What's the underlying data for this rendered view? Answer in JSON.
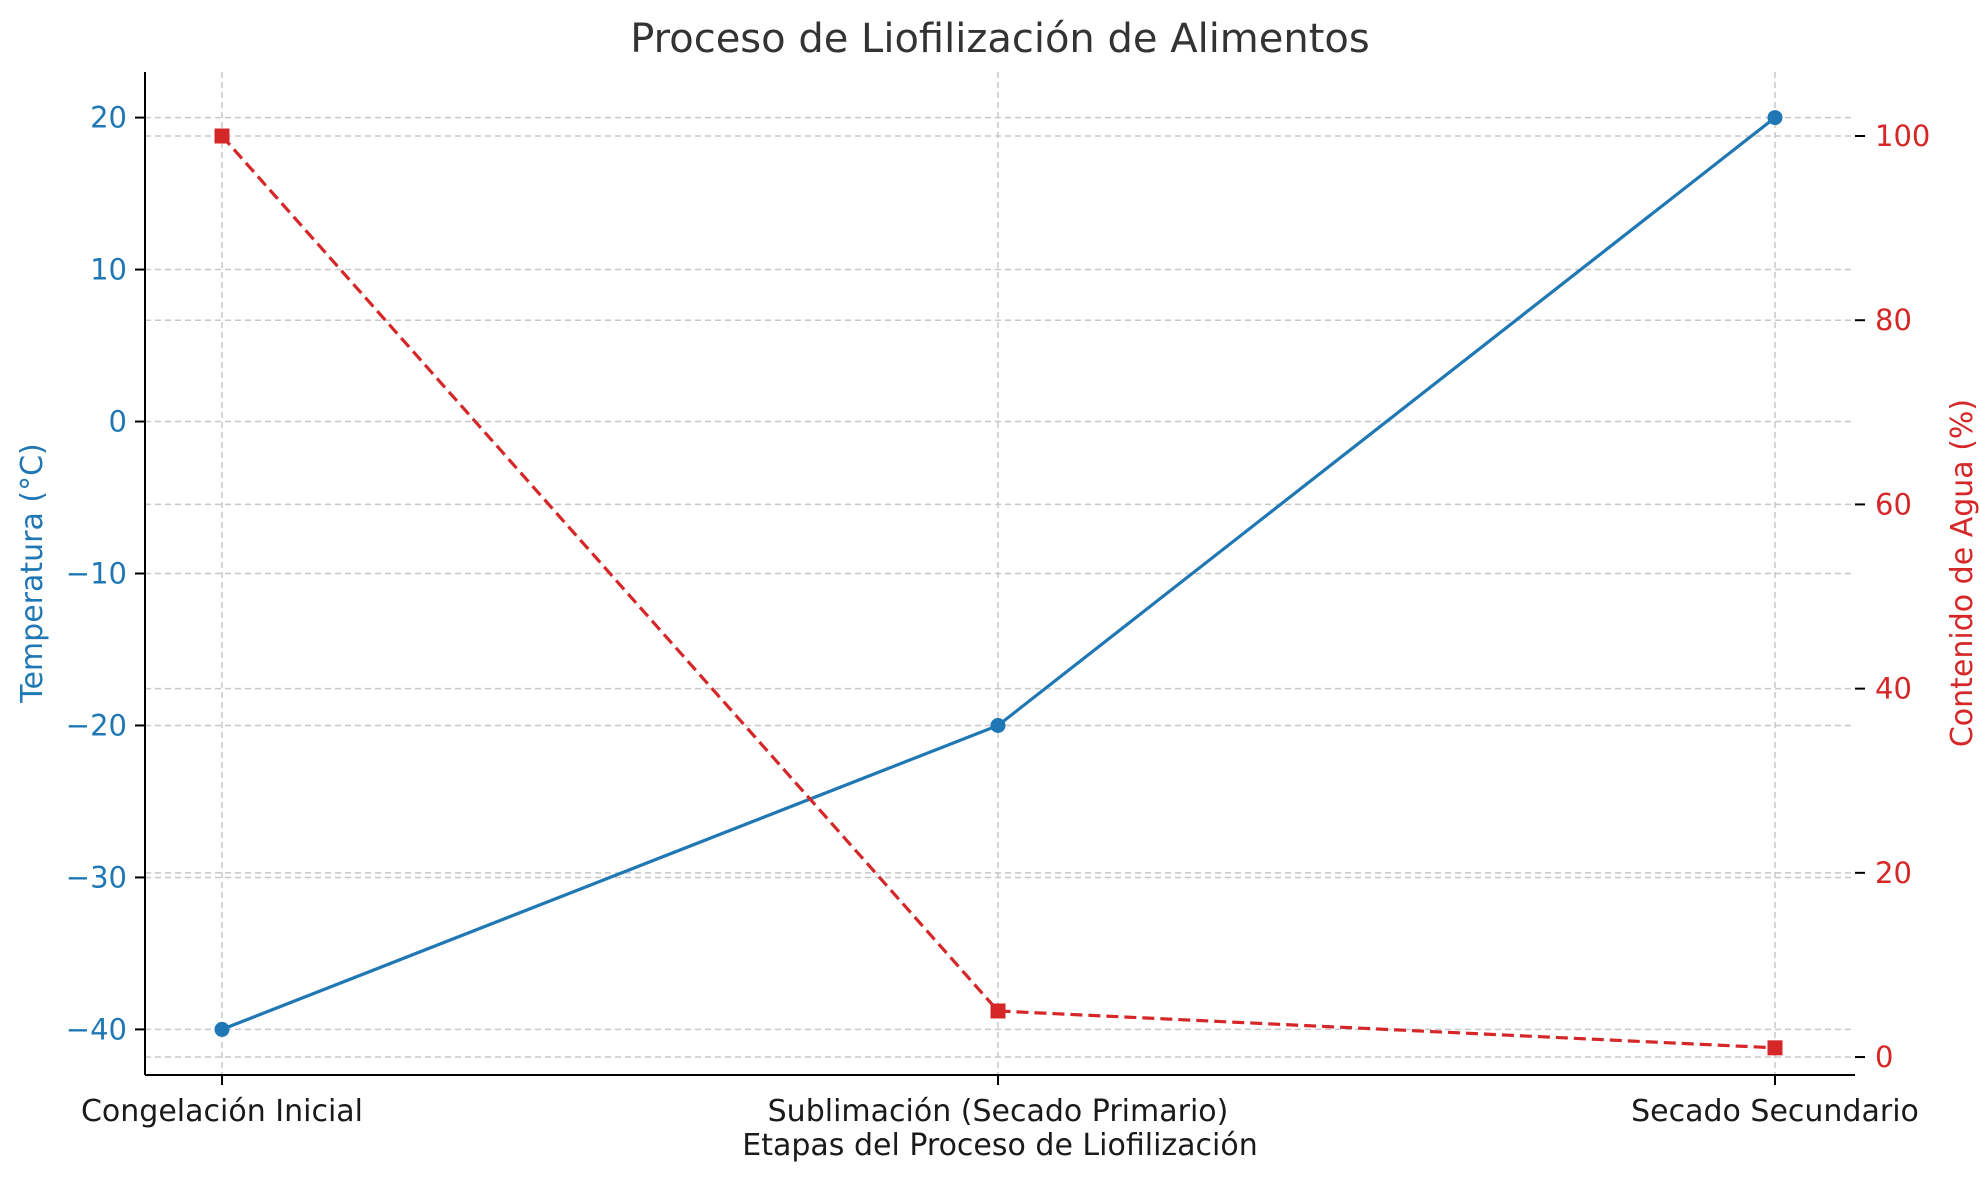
{
  "chart_data": {
    "type": "line",
    "title": "Proceso de Liofilización de Alimentos",
    "xlabel": "Etapas del Proceso de Liofilización",
    "ylabel_left": "Temperatura (°C)",
    "ylabel_right": "Contenido de Agua (%)",
    "categories": [
      "Congelación Inicial",
      "Sublimación (Secado Primario)",
      "Secado Secundario"
    ],
    "left_axis": {
      "ylim": [
        -43,
        23
      ],
      "ticks": [
        -40,
        -30,
        -20,
        -10,
        0,
        10,
        20
      ],
      "tick_labels": [
        "−40",
        "−30",
        "−20",
        "−10",
        "0",
        "10",
        "20"
      ],
      "color": "#1f77b4"
    },
    "right_axis": {
      "ylim": [
        -1.95,
        106.95
      ],
      "ticks": [
        0,
        20,
        40,
        60,
        80,
        100
      ],
      "tick_labels": [
        "0",
        "20",
        "40",
        "60",
        "80",
        "100"
      ],
      "color": "#d62728"
    },
    "series": [
      {
        "axis": "left",
        "values": [
          -40,
          -20,
          20
        ],
        "color": "#1f77b4",
        "line_style": "solid",
        "marker": "circle"
      },
      {
        "axis": "right",
        "values": [
          100,
          5,
          1
        ],
        "color": "#d62728",
        "line_style": "dashed",
        "marker": "square"
      }
    ],
    "grid": true,
    "legend": "none"
  }
}
